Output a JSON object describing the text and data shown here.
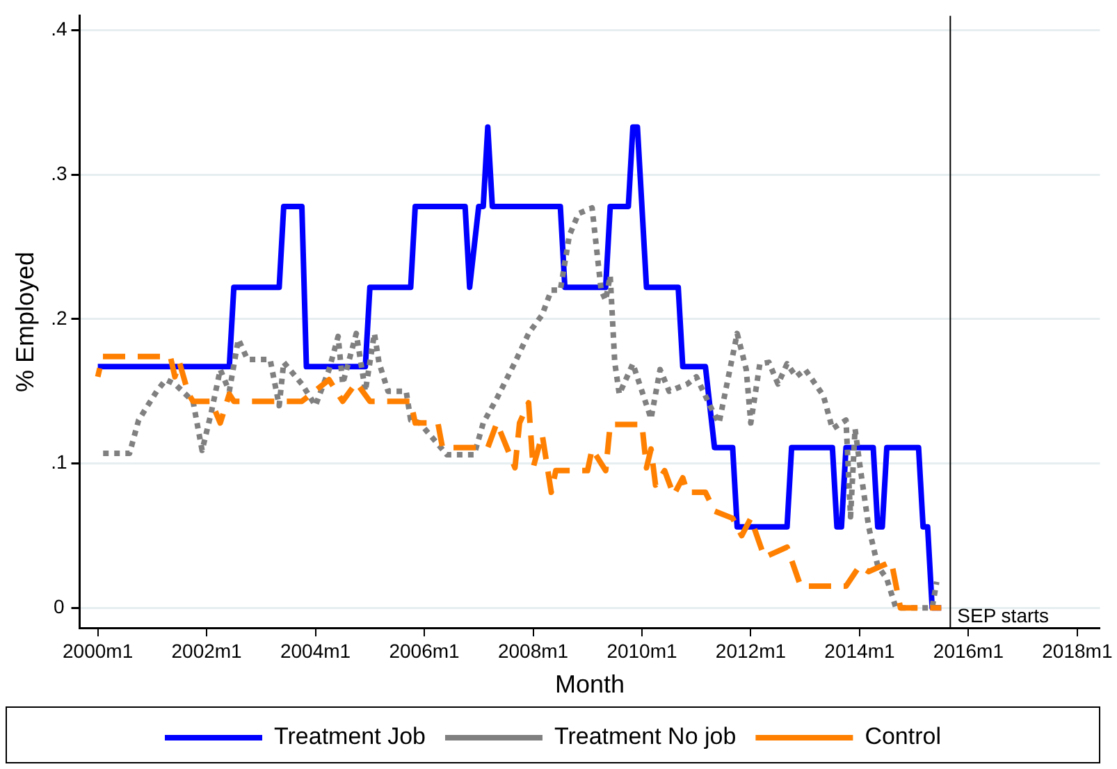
{
  "chart_data": {
    "type": "line",
    "xlabel": "Month",
    "ylabel": "% Employed",
    "xlim": [
      "1999-09",
      "2018-06"
    ],
    "xticks": [
      {
        "value": "2000-01",
        "label": "2000m1"
      },
      {
        "value": "2002-01",
        "label": "2002m1"
      },
      {
        "value": "2004-01",
        "label": "2004m1"
      },
      {
        "value": "2006-01",
        "label": "2006m1"
      },
      {
        "value": "2008-01",
        "label": "2008m1"
      },
      {
        "value": "2010-01",
        "label": "2010m1"
      },
      {
        "value": "2012-01",
        "label": "2012m1"
      },
      {
        "value": "2014-01",
        "label": "2014m1"
      },
      {
        "value": "2016-01",
        "label": "2016m1"
      },
      {
        "value": "2018-01",
        "label": "2018m1"
      }
    ],
    "ylim": [
      -0.014,
      0.41
    ],
    "yticks": [
      0,
      {
        "value": 0.1,
        "label": ".1"
      },
      {
        "value": 0.2,
        "label": ".2"
      },
      {
        "value": 0.3,
        "label": ".3"
      },
      {
        "value": 0.4,
        "label": ".4"
      }
    ],
    "grid": "y",
    "legend": "bottom",
    "marker": "none",
    "series": [
      {
        "name": "Treatment Job",
        "color": "#0000ff",
        "line_style": "solid",
        "x": [
          "2000-01",
          "2002-06",
          "2002-07",
          "2003-05",
          "2003-06",
          "2003-10",
          "2003-11",
          "2004-12",
          "2005-01",
          "2005-10",
          "2005-11",
          "2006-10",
          "2006-11",
          "2007-01",
          "2007-02",
          "2007-03",
          "2007-04",
          "2008-07",
          "2008-08",
          "2009-05",
          "2009-06",
          "2009-10",
          "2009-11",
          "2009-12",
          "2010-02",
          "2010-09",
          "2010-10",
          "2011-03",
          "2011-05",
          "2011-09",
          "2011-10",
          "2012-09",
          "2012-10",
          "2013-07",
          "2013-08",
          "2013-09",
          "2013-10",
          "2014-04",
          "2014-05",
          "2014-06",
          "2014-07",
          "2015-02",
          "2015-03",
          "2015-04",
          "2015-05",
          "2015-07"
        ],
        "values": [
          0.167,
          0.167,
          0.222,
          0.222,
          0.278,
          0.278,
          0.167,
          0.167,
          0.222,
          0.222,
          0.278,
          0.278,
          0.222,
          0.278,
          0.278,
          0.333,
          0.278,
          0.278,
          0.222,
          0.222,
          0.278,
          0.278,
          0.333,
          0.333,
          0.222,
          0.222,
          0.167,
          0.167,
          0.111,
          0.111,
          0.056,
          0.056,
          0.111,
          0.111,
          0.056,
          0.056,
          0.111,
          0.111,
          0.056,
          0.056,
          0.111,
          0.111,
          0.056,
          0.056,
          0,
          0
        ]
      },
      {
        "name": "Treatment No job",
        "color": "#808080",
        "line_style": "dotted",
        "x": [
          "2000-01",
          "2000-08",
          "2000-10",
          "2001-02",
          "2001-04",
          "2001-06",
          "2001-10",
          "2001-12",
          "2002-02",
          "2002-04",
          "2002-06",
          "2002-08",
          "2002-10",
          "2003-03",
          "2003-05",
          "2003-06",
          "2003-10",
          "2004-01",
          "2004-04",
          "2004-06",
          "2004-07",
          "2004-10",
          "2004-12",
          "2005-02",
          "2005-03",
          "2005-05",
          "2005-09",
          "2005-10",
          "2005-12",
          "2006-06",
          "2006-12",
          "2007-02",
          "2007-05",
          "2007-09",
          "2007-12",
          "2008-03",
          "2008-05",
          "2008-07",
          "2008-09",
          "2008-11",
          "2009-02",
          "2009-04",
          "2009-05",
          "2009-06",
          "2009-07",
          "2009-08",
          "2009-11",
          "2010-01",
          "2010-03",
          "2010-05",
          "2010-07",
          "2010-11",
          "2011-01",
          "2011-04",
          "2011-06",
          "2011-10",
          "2011-12",
          "2012-01",
          "2012-03",
          "2012-05",
          "2012-07",
          "2012-09",
          "2012-11",
          "2013-01",
          "2013-05",
          "2013-07",
          "2013-10",
          "2013-11",
          "2013-12",
          "2014-01",
          "2014-03",
          "2014-05",
          "2014-07",
          "2014-09",
          "2015-05",
          "2015-06"
        ],
        "values": [
          0.107,
          0.107,
          0.13,
          0.15,
          0.158,
          0.155,
          0.143,
          0.109,
          0.135,
          0.165,
          0.15,
          0.186,
          0.172,
          0.172,
          0.14,
          0.17,
          0.155,
          0.14,
          0.165,
          0.188,
          0.155,
          0.19,
          0.15,
          0.19,
          0.17,
          0.15,
          0.15,
          0.13,
          0.128,
          0.106,
          0.106,
          0.128,
          0.145,
          0.17,
          0.19,
          0.203,
          0.22,
          0.22,
          0.258,
          0.273,
          0.277,
          0.22,
          0.213,
          0.23,
          0.17,
          0.148,
          0.169,
          0.15,
          0.131,
          0.165,
          0.15,
          0.155,
          0.16,
          0.14,
          0.128,
          0.19,
          0.165,
          0.128,
          0.169,
          0.17,
          0.155,
          0.169,
          0.16,
          0.165,
          0.147,
          0.124,
          0.13,
          0.063,
          0.124,
          0.1,
          0.056,
          0.029,
          0.02,
          0,
          0,
          0.018
        ]
      },
      {
        "name": "Control",
        "color": "#ff8000",
        "line_style": "dashed",
        "x": [
          "2000-01",
          "2000-02",
          "2001-05",
          "2001-06",
          "2001-07",
          "2001-09",
          "2001-10",
          "2002-02",
          "2002-04",
          "2002-06",
          "2002-07",
          "2003-10",
          "2004-04",
          "2004-07",
          "2004-10",
          "2005-01",
          "2005-10",
          "2005-11",
          "2006-04",
          "2006-05",
          "2007-03",
          "2007-05",
          "2007-09",
          "2007-10",
          "2007-12",
          "2008-01",
          "2008-03",
          "2008-05",
          "2008-06",
          "2009-01",
          "2009-02",
          "2009-05",
          "2009-06",
          "2010-01",
          "2010-02",
          "2010-03",
          "2010-04",
          "2010-06",
          "2010-08",
          "2010-10",
          "2010-11",
          "2011-03",
          "2011-05",
          "2011-09",
          "2011-11",
          "2012-01",
          "2012-04",
          "2012-09",
          "2012-12",
          "2013-10",
          "2014-01",
          "2014-03",
          "2014-08",
          "2014-10",
          "2015-07"
        ],
        "values": [
          0.16,
          0.174,
          0.174,
          0.16,
          0.17,
          0.148,
          0.143,
          0.143,
          0.128,
          0.148,
          0.143,
          0.143,
          0.158,
          0.143,
          0.156,
          0.143,
          0.143,
          0.128,
          0.128,
          0.111,
          0.111,
          0.128,
          0.097,
          0.128,
          0.142,
          0.097,
          0.12,
          0.08,
          0.095,
          0.095,
          0.11,
          0.095,
          0.127,
          0.127,
          0.097,
          0.11,
          0.085,
          0.095,
          0.078,
          0.09,
          0.08,
          0.08,
          0.067,
          0.062,
          0.05,
          0.062,
          0.035,
          0.042,
          0.015,
          0.015,
          0.029,
          0.025,
          0.032,
          0,
          0
        ]
      }
    ],
    "ref_lines": [
      {
        "axis": "x",
        "value": "2015-09",
        "label": "SEP starts",
        "color": "#000000"
      }
    ]
  }
}
